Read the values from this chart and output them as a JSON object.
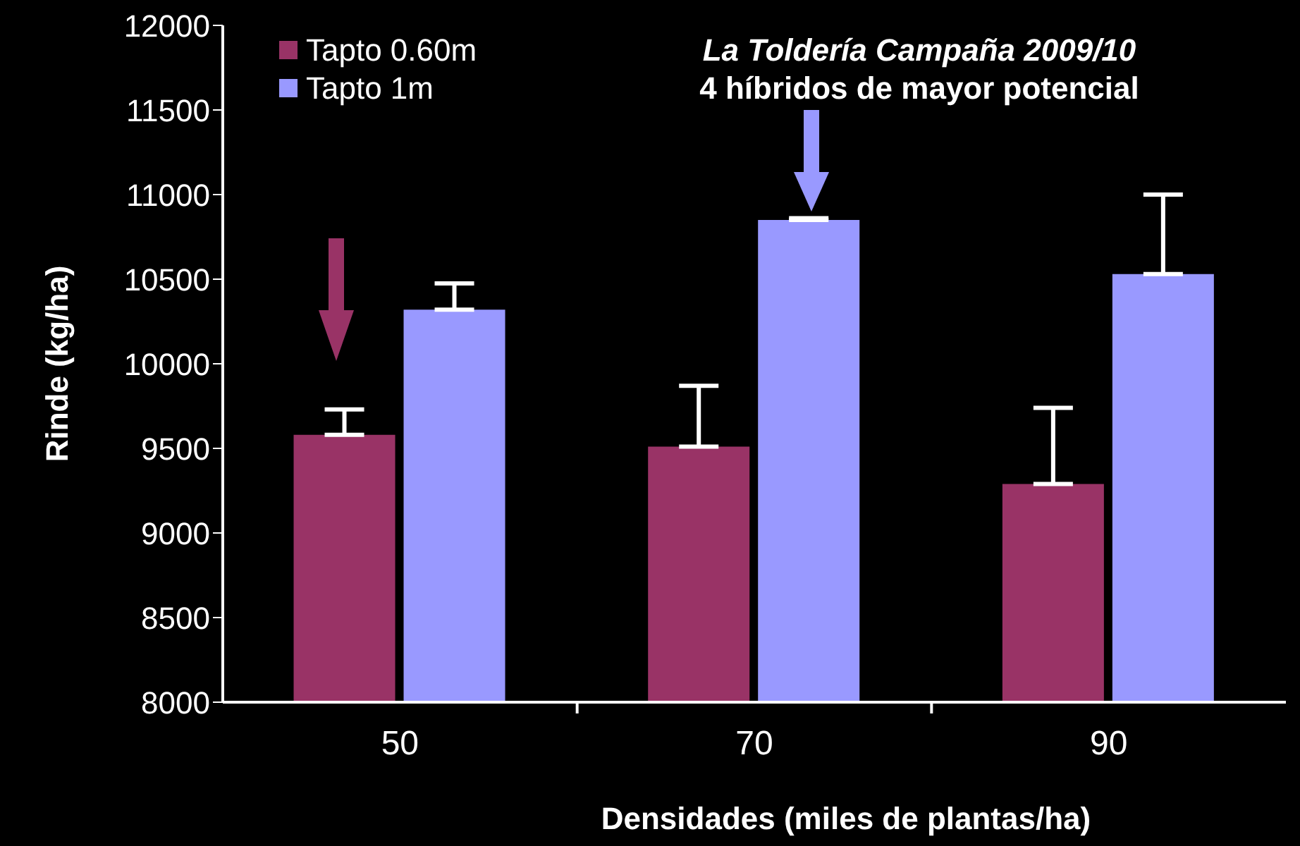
{
  "chart_data": {
    "type": "bar",
    "title": "La Toldería Campaña 2009/10",
    "subtitle": "4 híbridos de mayor potencial",
    "xlabel": "Densidades (miles de plantas/ha)",
    "ylabel": "Rinde (kg/ha)",
    "categories": [
      "50",
      "70",
      "90"
    ],
    "series": [
      {
        "name": "Tapto 0.60m",
        "color": "#993366",
        "values": [
          9580,
          9510,
          9290
        ],
        "errors": [
          [
            9580,
            9730
          ],
          [
            9510,
            9870
          ],
          [
            9290,
            9740
          ]
        ]
      },
      {
        "name": "Tapto 1m",
        "color": "#9999ff",
        "values": [
          10320,
          10850,
          10530
        ],
        "errors": [
          [
            10320,
            10475
          ],
          [
            10850,
            10860
          ],
          [
            10530,
            11000
          ]
        ]
      }
    ],
    "ylim": [
      8000,
      12000
    ],
    "yticks": [
      8000,
      8500,
      9000,
      9500,
      10000,
      10500,
      11000,
      11500,
      12000
    ],
    "grid": false,
    "legend": "top left"
  }
}
